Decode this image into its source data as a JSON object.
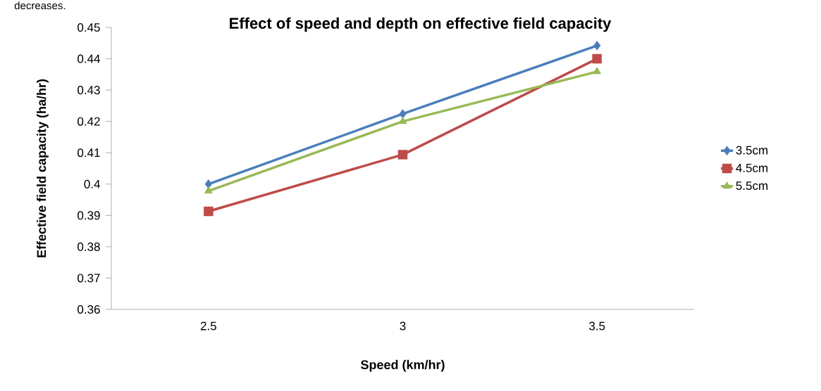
{
  "chart_data": {
    "type": "line",
    "title": "Effect of speed and depth on effective field capacity",
    "xlabel": "Speed (km/hr)",
    "ylabel": "Effective field capacity (ha/hr)",
    "categories": [
      "2.5",
      "3",
      "3.5"
    ],
    "series": [
      {
        "name": "3.5cm",
        "color": "#4a7ebb",
        "marker": "diamond",
        "values": [
          0.4,
          0.4224,
          0.4442
        ]
      },
      {
        "name": "4.5cm",
        "color": "#be4b48",
        "marker": "square",
        "values": [
          0.3913,
          0.4094,
          0.44
        ]
      },
      {
        "name": "5.5cm",
        "color": "#98b954",
        "marker": "triangle",
        "values": [
          0.3978,
          0.42,
          0.4359
        ]
      }
    ],
    "ylim": [
      0.36,
      0.45
    ],
    "yticks": [
      0.36,
      0.37,
      0.38,
      0.39,
      0.4,
      0.41,
      0.42,
      0.43,
      0.44,
      0.45
    ],
    "legend": "right",
    "grid": false,
    "line_style": "solid",
    "annotations": [
      "decreases."
    ]
  }
}
